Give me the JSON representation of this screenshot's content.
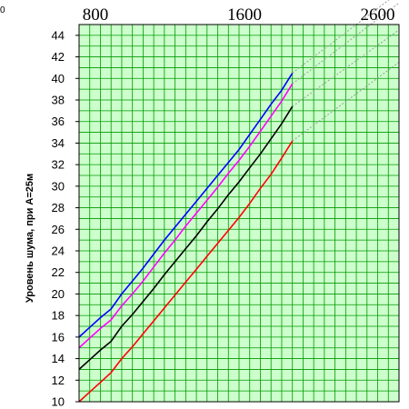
{
  "corner_label": "0",
  "chart_data": {
    "type": "line",
    "title": "",
    "xlabel": "",
    "ylabel": "Уровень шума, при А=25м",
    "xlim": [
      0,
      600
    ],
    "ylim": [
      10,
      45
    ],
    "x_tick_labels": [
      "800",
      "1600",
      "2600"
    ],
    "y_ticks": [
      10,
      12,
      14,
      16,
      18,
      20,
      22,
      24,
      26,
      28,
      30,
      32,
      34,
      36,
      38,
      40,
      42,
      44
    ],
    "grid": true,
    "legend": "none",
    "colors": {
      "plot_bg": "#ccffcc",
      "grid": "#009900",
      "extension": "#999999"
    },
    "series": [
      {
        "color": "#0000ff",
        "points": [
          [
            0,
            16
          ],
          [
            20,
            16.9
          ],
          [
            40,
            17.8
          ],
          [
            60,
            18.6
          ],
          [
            80,
            20
          ],
          [
            100,
            21.2
          ],
          [
            120,
            22.4
          ],
          [
            140,
            23.7
          ],
          [
            160,
            25
          ],
          [
            180,
            26.2
          ],
          [
            200,
            27.4
          ],
          [
            220,
            28.6
          ],
          [
            240,
            29.8
          ],
          [
            260,
            31
          ],
          [
            280,
            32.2
          ],
          [
            300,
            33.4
          ],
          [
            320,
            34.8
          ],
          [
            340,
            36.2
          ],
          [
            360,
            37.6
          ],
          [
            380,
            38.9
          ],
          [
            400,
            40.5
          ]
        ]
      },
      {
        "color": "#ff00ff",
        "points": [
          [
            0,
            15
          ],
          [
            20,
            15.9
          ],
          [
            40,
            16.8
          ],
          [
            60,
            17.6
          ],
          [
            80,
            18.9
          ],
          [
            100,
            20
          ],
          [
            120,
            21.2
          ],
          [
            140,
            22.5
          ],
          [
            160,
            23.8
          ],
          [
            180,
            25
          ],
          [
            200,
            26.3
          ],
          [
            220,
            27.5
          ],
          [
            240,
            28.7
          ],
          [
            260,
            29.9
          ],
          [
            280,
            31.2
          ],
          [
            300,
            32.4
          ],
          [
            320,
            33.7
          ],
          [
            340,
            35.1
          ],
          [
            360,
            36.5
          ],
          [
            380,
            37.9
          ],
          [
            400,
            39.5
          ]
        ]
      },
      {
        "color": "#000000",
        "points": [
          [
            0,
            13
          ],
          [
            20,
            13.9
          ],
          [
            40,
            14.8
          ],
          [
            60,
            15.6
          ],
          [
            80,
            17
          ],
          [
            100,
            18.1
          ],
          [
            120,
            19.3
          ],
          [
            140,
            20.5
          ],
          [
            160,
            21.8
          ],
          [
            180,
            23
          ],
          [
            200,
            24.2
          ],
          [
            220,
            25.4
          ],
          [
            240,
            26.7
          ],
          [
            260,
            27.9
          ],
          [
            280,
            29.2
          ],
          [
            300,
            30.4
          ],
          [
            320,
            31.7
          ],
          [
            340,
            33
          ],
          [
            360,
            34.4
          ],
          [
            380,
            35.8
          ],
          [
            400,
            37.4
          ]
        ]
      },
      {
        "color": "#ff0000",
        "points": [
          [
            0,
            10
          ],
          [
            20,
            10.9
          ],
          [
            40,
            11.8
          ],
          [
            60,
            12.7
          ],
          [
            80,
            14
          ],
          [
            100,
            15.1
          ],
          [
            120,
            16.3
          ],
          [
            140,
            17.5
          ],
          [
            160,
            18.7
          ],
          [
            180,
            19.9
          ],
          [
            200,
            21.1
          ],
          [
            220,
            22.3
          ],
          [
            240,
            23.5
          ],
          [
            260,
            24.7
          ],
          [
            280,
            25.9
          ],
          [
            300,
            27.1
          ],
          [
            320,
            28.4
          ],
          [
            340,
            29.8
          ],
          [
            360,
            31.1
          ],
          [
            380,
            32.6
          ],
          [
            400,
            34.2
          ]
        ]
      }
    ],
    "extensions": [
      {
        "from": [
          400,
          40.5
        ],
        "to": [
          600,
          48
        ]
      },
      {
        "from": [
          400,
          39.5
        ],
        "to": [
          600,
          47
        ]
      },
      {
        "from": [
          400,
          37.4
        ],
        "to": [
          600,
          44.5
        ]
      },
      {
        "from": [
          400,
          34.2
        ],
        "to": [
          600,
          41.5
        ]
      }
    ]
  }
}
